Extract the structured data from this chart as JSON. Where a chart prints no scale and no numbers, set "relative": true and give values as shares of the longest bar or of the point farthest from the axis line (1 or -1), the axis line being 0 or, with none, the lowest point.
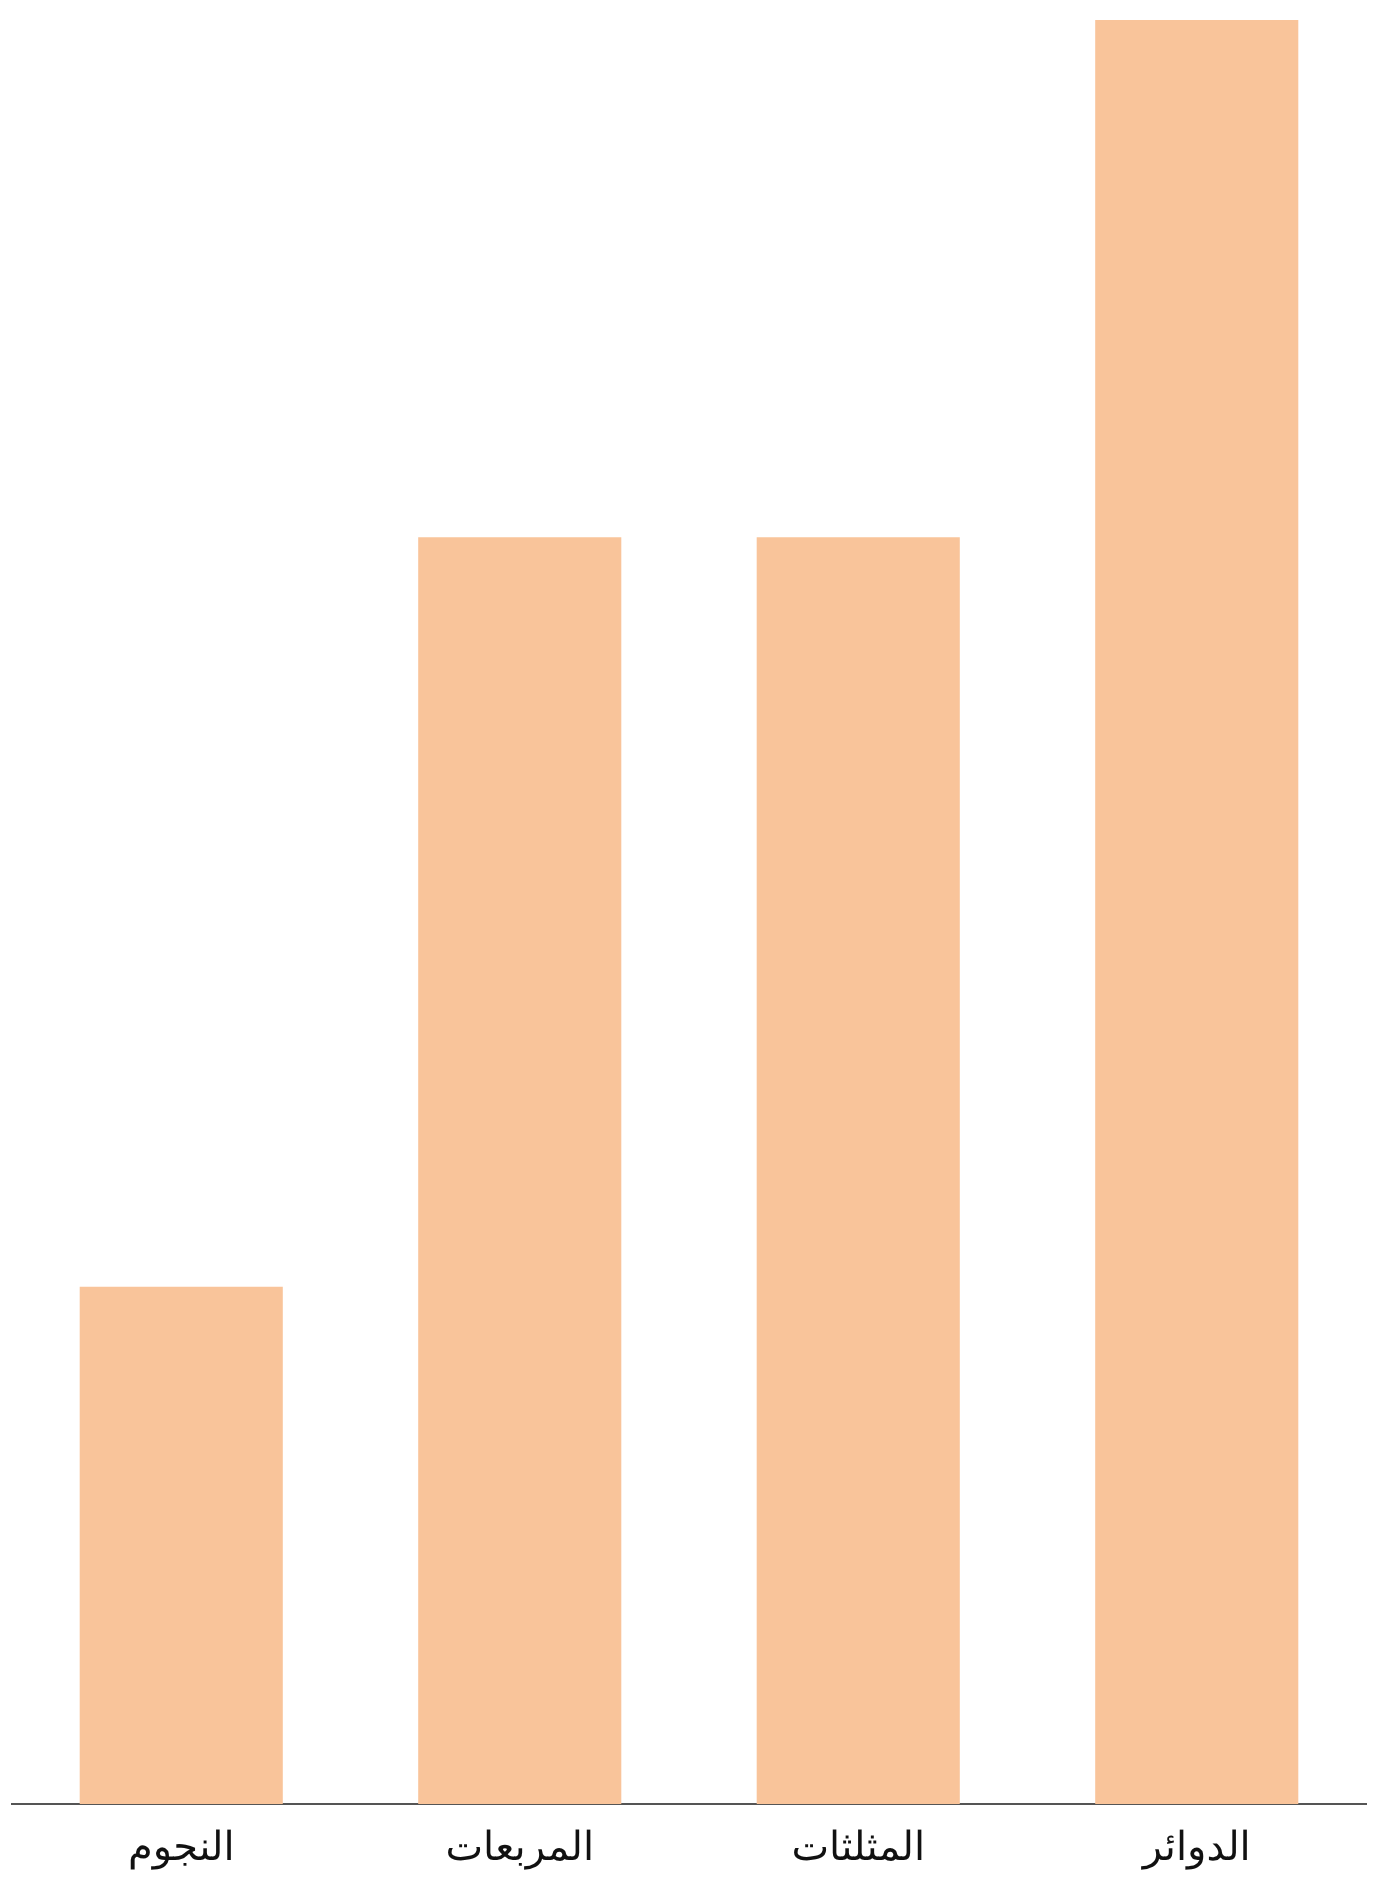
{
  "chart_data": {
    "type": "bar",
    "categories": [
      "النجوم",
      "المربعات",
      "المثلثات",
      "الدوائر"
    ],
    "values": [
      0.29,
      0.71,
      0.71,
      1
    ],
    "color": "#f9c49a",
    "relative": true
  }
}
